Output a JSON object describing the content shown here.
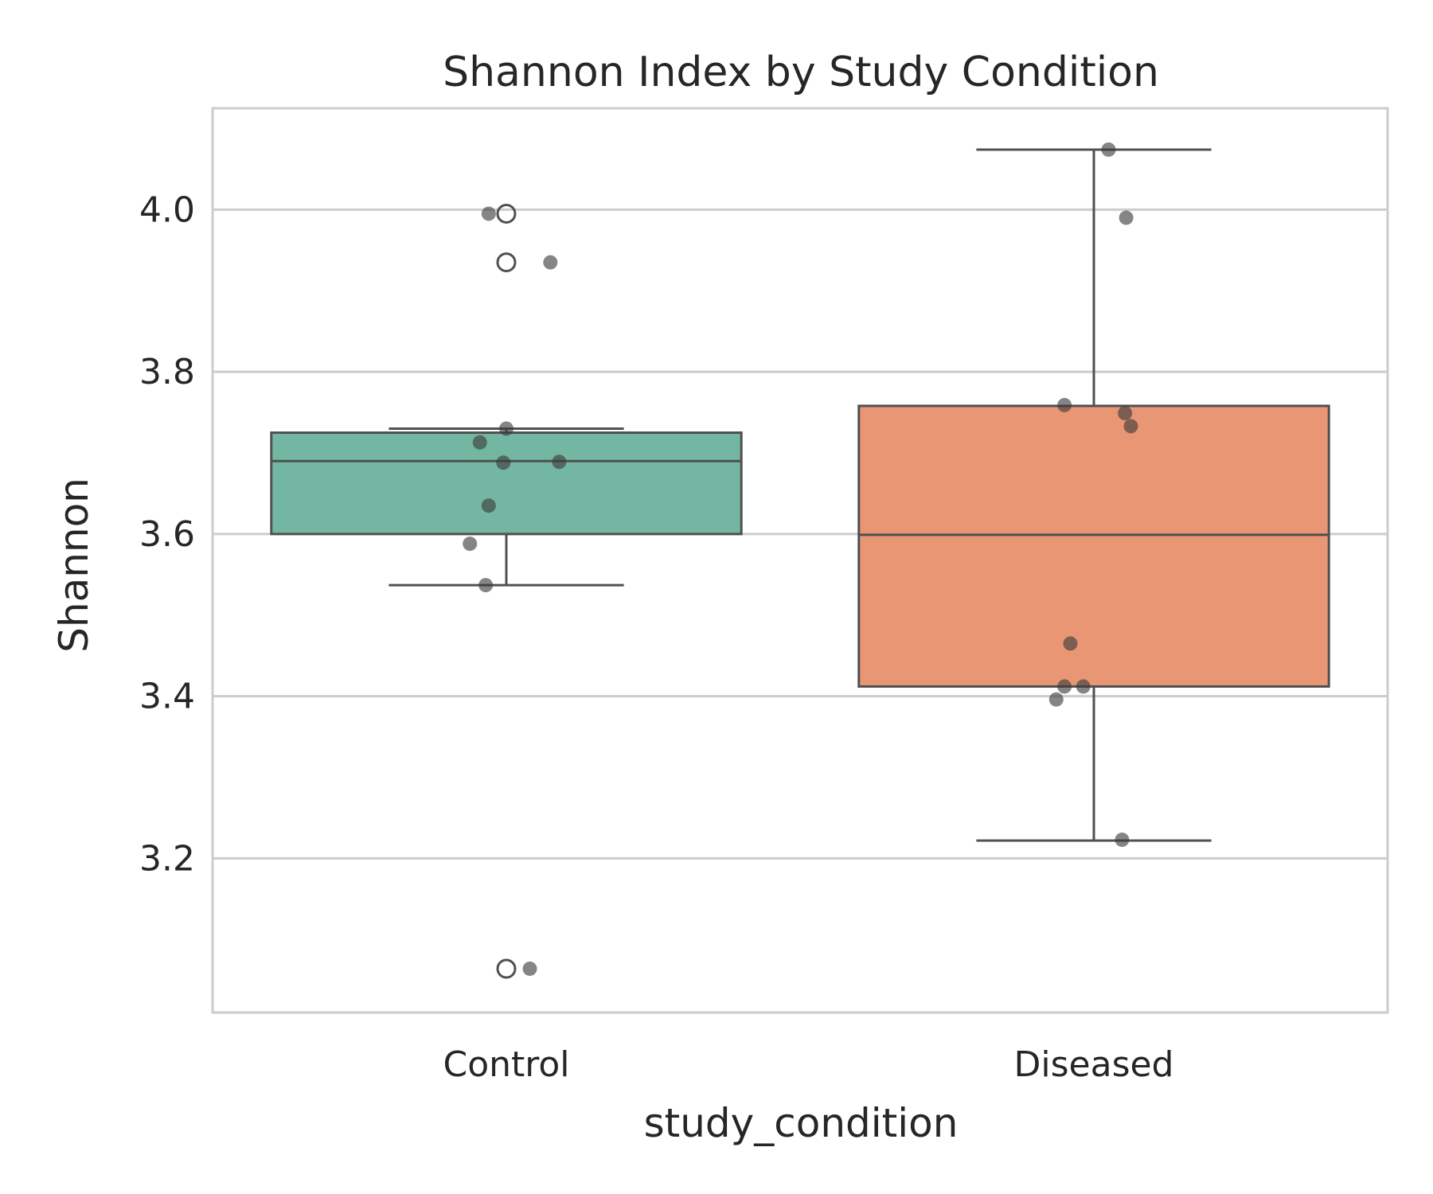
{
  "chart_data": {
    "type": "box",
    "title": "Shannon Index by Study Condition",
    "xlabel": "study_condition",
    "ylabel": "Shannon",
    "categories": [
      "Control",
      "Diseased"
    ],
    "ylim": [
      3.01,
      4.125
    ],
    "yticks": [
      "3.2",
      "3.4",
      "3.6",
      "3.8",
      "4.0"
    ],
    "grid": "y",
    "boxes": [
      {
        "name": "Control",
        "color": "#73b6a1",
        "q1": 3.6,
        "median": 3.69,
        "q3": 3.725,
        "whisker_low": 3.537,
        "whisker_high": 3.73,
        "outliers": [
          3.995,
          3.935,
          3.064
        ]
      },
      {
        "name": "Diseased",
        "color": "#e99675",
        "q1": 3.412,
        "median": 3.599,
        "q3": 3.758,
        "whisker_low": 3.222,
        "whisker_high": 4.074,
        "outliers": []
      }
    ],
    "points": [
      {
        "cat": 0,
        "dx": -0.03,
        "y": 3.995
      },
      {
        "cat": 0,
        "dx": 0.075,
        "y": 3.935
      },
      {
        "cat": 0,
        "dx": -0.0,
        "y": 3.73
      },
      {
        "cat": 0,
        "dx": -0.045,
        "y": 3.713
      },
      {
        "cat": 0,
        "dx": -0.005,
        "y": 3.688
      },
      {
        "cat": 0,
        "dx": 0.09,
        "y": 3.689
      },
      {
        "cat": 0,
        "dx": -0.03,
        "y": 3.635
      },
      {
        "cat": 0,
        "dx": -0.062,
        "y": 3.588
      },
      {
        "cat": 0,
        "dx": -0.035,
        "y": 3.537
      },
      {
        "cat": 0,
        "dx": 0.04,
        "y": 3.064
      },
      {
        "cat": 1,
        "dx": 0.025,
        "y": 4.074
      },
      {
        "cat": 1,
        "dx": 0.055,
        "y": 3.99
      },
      {
        "cat": 1,
        "dx": -0.05,
        "y": 3.759
      },
      {
        "cat": 1,
        "dx": 0.053,
        "y": 3.749
      },
      {
        "cat": 1,
        "dx": 0.063,
        "y": 3.733
      },
      {
        "cat": 1,
        "dx": -0.04,
        "y": 3.465
      },
      {
        "cat": 1,
        "dx": -0.05,
        "y": 3.412
      },
      {
        "cat": 1,
        "dx": -0.018,
        "y": 3.412
      },
      {
        "cat": 1,
        "dx": -0.064,
        "y": 3.396
      },
      {
        "cat": 1,
        "dx": 0.048,
        "y": 3.223
      }
    ],
    "point_color": "#3a3a3a",
    "line_color": "#505050",
    "grid_color": "#cccccc"
  }
}
